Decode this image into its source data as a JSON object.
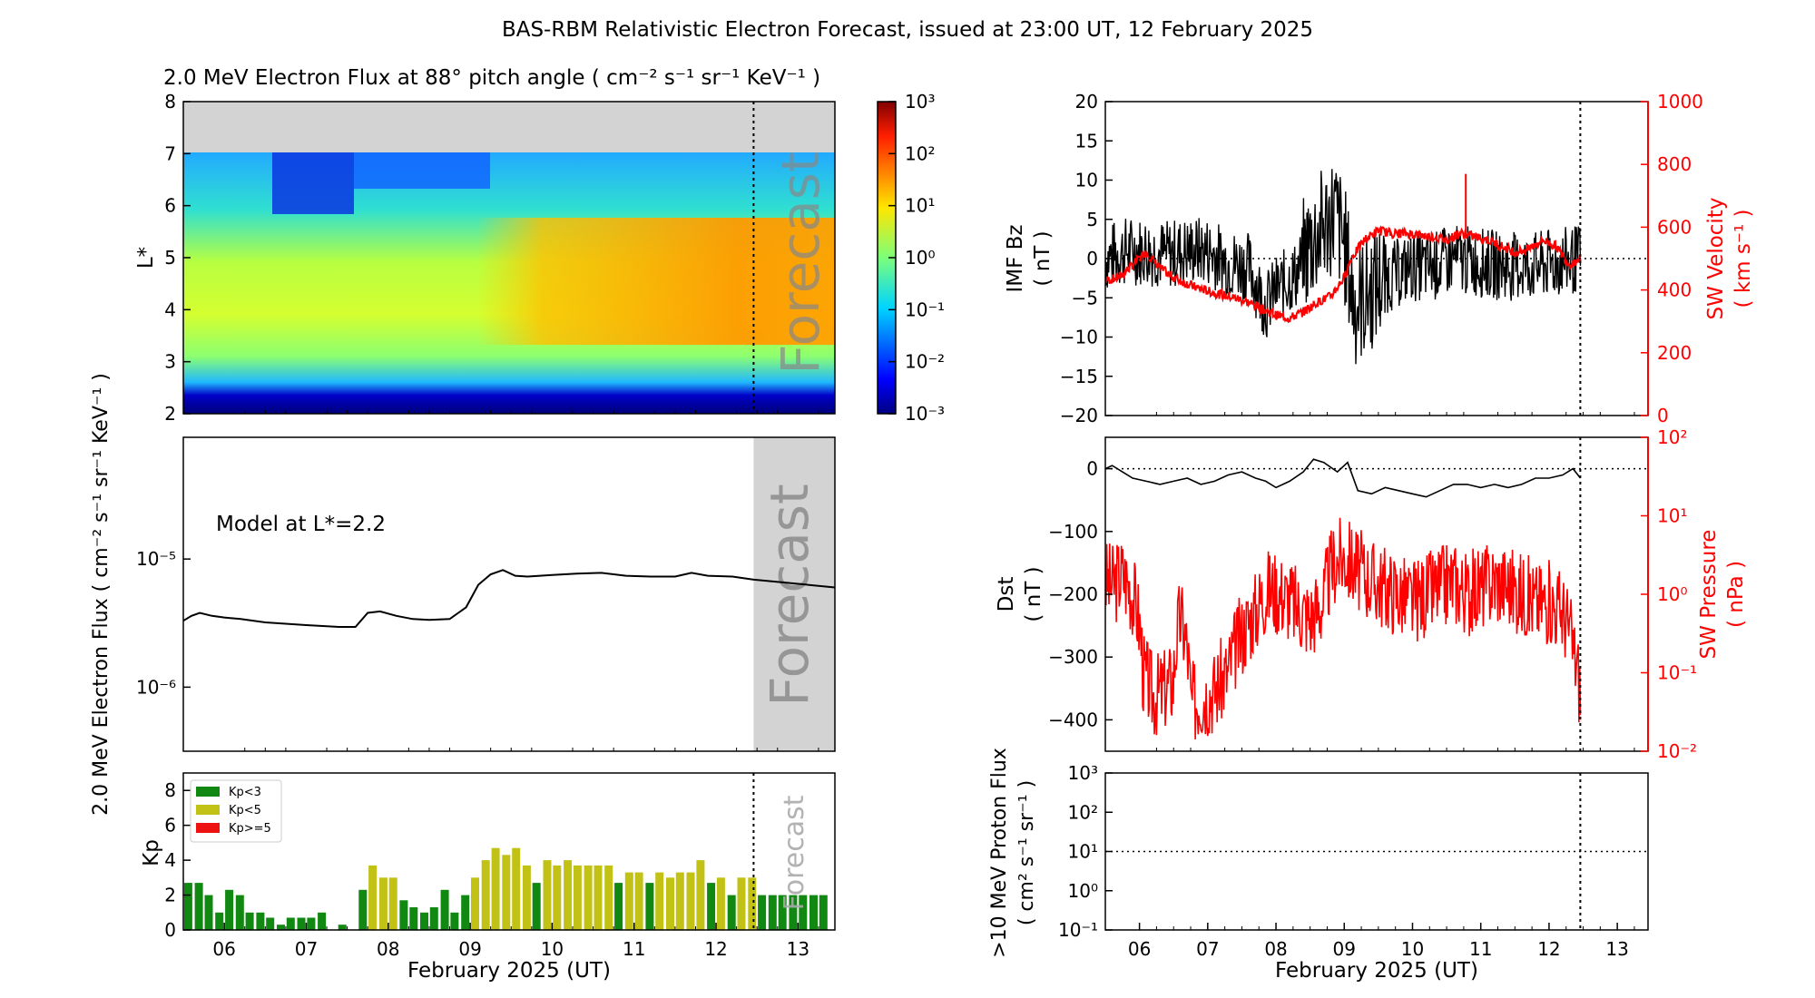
{
  "figure": {
    "title": "BAS-RBM Relativistic Electron Forecast, issued at 23:00 UT, 12 February 2025",
    "xlabel": "February 2025 (UT)",
    "day_ticks": [
      "06",
      "07",
      "08",
      "09",
      "10",
      "11",
      "12",
      "13"
    ],
    "forecast_label": "Forecast"
  },
  "chart_data": [
    {
      "id": "electron-flux-map",
      "type": "heatmap",
      "title": "2.0 MeV Electron Flux at 88° pitch angle ( cm⁻² s⁻¹ sr⁻¹ KeV⁻¹ )",
      "ylabel": "L*",
      "xlim": [
        5.5,
        13.45
      ],
      "ylim": [
        2,
        8
      ],
      "yticks": [
        "2",
        "3",
        "4",
        "5",
        "6",
        "7",
        "8"
      ],
      "colorbar_ticks": [
        "10⁻³",
        "10⁻²",
        "10⁻¹",
        "10⁰",
        "10¹",
        "10²",
        "10³"
      ],
      "colorbar_range_log10": [
        -3,
        3
      ],
      "no_data_region_L": [
        7,
        8
      ],
      "forecast_start": 12.458
    },
    {
      "id": "model-flux-line",
      "type": "line",
      "ylabel": "2.0 MeV Electron Flux ( cm⁻² s⁻¹ sr⁻¹ KeV⁻¹ )",
      "annotation": "Model at L*=2.2",
      "yscale": "log",
      "ylim_log10": [
        -6.5,
        -4.05
      ],
      "yticks": [
        "10⁻⁵",
        "10⁻⁶"
      ],
      "x": [
        5.5,
        5.6,
        5.7,
        5.85,
        6.0,
        6.2,
        6.5,
        7.0,
        7.4,
        7.6,
        7.75,
        7.9,
        8.1,
        8.3,
        8.5,
        8.75,
        8.95,
        9.1,
        9.25,
        9.4,
        9.55,
        9.7,
        10.0,
        10.3,
        10.6,
        10.9,
        11.2,
        11.5,
        11.7,
        11.9,
        12.2,
        12.46,
        12.9,
        13.45
      ],
      "y": [
        3.3e-06,
        3.6e-06,
        3.8e-06,
        3.6e-06,
        3.5e-06,
        3.4e-06,
        3.2e-06,
        3.05e-06,
        2.95e-06,
        2.95e-06,
        3.8e-06,
        3.9e-06,
        3.6e-06,
        3.4e-06,
        3.35e-06,
        3.4e-06,
        4.2e-06,
        6.3e-06,
        7.6e-06,
        8.2e-06,
        7.4e-06,
        7.3e-06,
        7.5e-06,
        7.7e-06,
        7.8e-06,
        7.4e-06,
        7.3e-06,
        7.3e-06,
        7.8e-06,
        7.4e-06,
        7.3e-06,
        6.9e-06,
        6.5e-06,
        6e-06
      ]
    },
    {
      "id": "kp-bars",
      "type": "bar",
      "ylabel": "Kp",
      "ylim": [
        0,
        9
      ],
      "yticks": [
        "0",
        "2",
        "4",
        "6",
        "8"
      ],
      "bar_width_days": 0.1,
      "thresholds": {
        "green_below": 3,
        "yellow_below": 5
      },
      "colors": {
        "low": "#118811",
        "mid": "#c2c216",
        "high": "#ee1111"
      },
      "legend": [
        "Kp<3",
        "Kp<5",
        "Kp>=5"
      ],
      "legend_position": "top-left",
      "x": [
        5.56,
        5.69,
        5.81,
        5.94,
        6.06,
        6.19,
        6.31,
        6.44,
        6.56,
        6.69,
        6.81,
        6.94,
        7.06,
        7.19,
        7.31,
        7.44,
        7.56,
        7.69,
        7.81,
        7.94,
        8.06,
        8.19,
        8.31,
        8.44,
        8.56,
        8.69,
        8.81,
        8.94,
        9.06,
        9.19,
        9.31,
        9.44,
        9.56,
        9.69,
        9.81,
        9.94,
        10.06,
        10.19,
        10.31,
        10.44,
        10.56,
        10.69,
        10.81,
        10.94,
        11.06,
        11.19,
        11.31,
        11.44,
        11.56,
        11.69,
        11.81,
        11.94,
        12.06,
        12.19,
        12.31,
        12.44,
        12.56,
        12.69,
        12.81,
        12.94,
        13.06,
        13.19,
        13.31
      ],
      "values": [
        2.7,
        2.7,
        2.0,
        1.0,
        2.3,
        2.0,
        1.0,
        1.0,
        0.7,
        0.3,
        0.7,
        0.7,
        0.7,
        1.0,
        0,
        0.3,
        0,
        2.3,
        3.7,
        3.0,
        3.0,
        1.7,
        1.3,
        1.0,
        1.3,
        2.3,
        1.0,
        2.0,
        3.0,
        4.0,
        4.7,
        4.3,
        4.7,
        3.7,
        2.7,
        4.0,
        3.7,
        4.0,
        3.7,
        3.7,
        3.7,
        3.7,
        2.7,
        3.3,
        3.3,
        2.7,
        3.3,
        3.0,
        3.3,
        3.3,
        4.0,
        2.7,
        3.0,
        2.0,
        3.0,
        3.0,
        2.0,
        2.0,
        2.0,
        2.0,
        2.0,
        2.0,
        2.0
      ]
    },
    {
      "id": "imf-sw-velocity",
      "type": "line",
      "ylabel_left": "IMF Bz ( nT )",
      "ylabel_right": "SW Velocity ( km s⁻¹ )",
      "ylim_left": [
        -20,
        20
      ],
      "ylim_right": [
        0,
        1000
      ],
      "yticks_left": [
        "20",
        "15",
        "10",
        "5",
        "0",
        "−5",
        "−10",
        "−15",
        "−20"
      ],
      "yticks_right": [
        "1000",
        "800",
        "600",
        "400",
        "200",
        "0"
      ],
      "series": [
        {
          "name": "IMF Bz",
          "color": "#000000",
          "axis": "left",
          "x": [
            5.5,
            5.8,
            6.1,
            6.4,
            6.7,
            7.0,
            7.3,
            7.6,
            7.75,
            7.85,
            8.0,
            8.3,
            8.5,
            8.7,
            8.85,
            9.0,
            9.15,
            9.3,
            9.5,
            9.75,
            10.0,
            10.3,
            10.6,
            11.0,
            11.4,
            11.8,
            12.2,
            12.46
          ],
          "y": [
            0,
            1,
            1,
            0.5,
            1,
            1,
            -0.5,
            -1,
            -4,
            -6,
            -4,
            -2,
            2,
            4,
            6,
            2,
            -6,
            -5,
            -3,
            -2,
            -1,
            -1,
            0,
            -0.5,
            -1,
            -1,
            -0.5,
            0
          ]
        },
        {
          "name": "SW Velocity",
          "color": "#ff0000",
          "axis": "right",
          "x": [
            5.5,
            5.7,
            5.9,
            6.1,
            6.3,
            6.5,
            6.8,
            7.1,
            7.4,
            7.6,
            7.8,
            8.0,
            8.2,
            8.4,
            8.6,
            8.8,
            9.0,
            9.1,
            9.3,
            9.5,
            9.7,
            9.9,
            10.1,
            10.3,
            10.5,
            10.7,
            10.9,
            11.1,
            11.3,
            11.5,
            11.7,
            11.9,
            12.1,
            12.3,
            12.46
          ],
          "y": [
            430,
            440,
            480,
            520,
            470,
            440,
            410,
            390,
            375,
            360,
            340,
            320,
            310,
            330,
            360,
            380,
            440,
            500,
            560,
            590,
            580,
            580,
            575,
            570,
            560,
            580,
            570,
            560,
            540,
            520,
            530,
            560,
            540,
            480,
            500
          ]
        }
      ],
      "spikes": {
        "x": [
          10.78
        ],
        "y": [
          770
        ]
      },
      "forecast_start": 12.458
    },
    {
      "id": "dst-sw-pressure",
      "type": "line",
      "ylabel_left": "Dst ( nT )",
      "ylabel_right": "SW Pressure ( nPa )",
      "ylim_left": [
        -450,
        50
      ],
      "yscale_right": "log",
      "ylim_right_log10": [
        -2,
        2
      ],
      "yticks_left": [
        "0",
        "−100",
        "−200",
        "−300",
        "−400"
      ],
      "yticks_right": [
        "10²",
        "10¹",
        "10⁰",
        "10⁻¹",
        "10⁻²"
      ],
      "series": [
        {
          "name": "Dst",
          "color": "#000000",
          "axis": "left",
          "x": [
            5.5,
            5.6,
            5.75,
            5.9,
            6.1,
            6.3,
            6.5,
            6.7,
            6.9,
            7.1,
            7.3,
            7.5,
            7.7,
            7.85,
            8.0,
            8.2,
            8.4,
            8.55,
            8.7,
            8.9,
            9.05,
            9.2,
            9.4,
            9.6,
            9.8,
            10.0,
            10.2,
            10.4,
            10.6,
            10.8,
            11.0,
            11.2,
            11.4,
            11.6,
            11.8,
            12.0,
            12.2,
            12.35,
            12.46
          ],
          "y": [
            0,
            5,
            -5,
            -15,
            -20,
            -25,
            -20,
            -15,
            -25,
            -20,
            -10,
            -5,
            -15,
            -20,
            -30,
            -20,
            -5,
            15,
            10,
            -5,
            10,
            -35,
            -40,
            -30,
            -35,
            -40,
            -45,
            -35,
            -25,
            -25,
            -30,
            -25,
            -30,
            -25,
            -15,
            -15,
            -10,
            0,
            -15
          ]
        },
        {
          "name": "SW Pressure",
          "color": "#ff0000",
          "axis": "right",
          "x": [
            5.5,
            5.6,
            5.75,
            5.9,
            6.05,
            6.2,
            6.35,
            6.5,
            6.6,
            6.75,
            6.9,
            7.1,
            7.3,
            7.5,
            7.7,
            7.9,
            8.1,
            8.3,
            8.5,
            8.7,
            8.85,
            9.0,
            9.2,
            9.4,
            9.6,
            9.8,
            10.0,
            10.2,
            10.4,
            10.6,
            10.8,
            11.0,
            11.2,
            11.4,
            11.6,
            11.8,
            12.0,
            12.2,
            12.35,
            12.46
          ],
          "y": [
            1.5,
            1.3,
            1.8,
            1.0,
            0.1,
            0.05,
            0.06,
            0.08,
            0.5,
            0.04,
            0.05,
            0.06,
            0.1,
            0.3,
            0.6,
            1.2,
            1.0,
            0.7,
            0.5,
            0.8,
            2.5,
            3.0,
            2.0,
            1.5,
            1.2,
            1.0,
            0.8,
            1.0,
            1.2,
            1.5,
            1.0,
            1.2,
            1.5,
            1.3,
            1.0,
            0.8,
            0.8,
            0.6,
            0.2,
            0.05
          ]
        }
      ],
      "forecast_start": 12.458
    },
    {
      "id": "proton-flux",
      "type": "line",
      "ylabel": ">10 MeV Proton Flux ( cm² s⁻¹ sr⁻¹ )",
      "yscale": "log",
      "ylim_log10": [
        -1,
        3
      ],
      "yticks": [
        "10³",
        "10²",
        "10¹",
        "10⁰",
        "10⁻¹"
      ],
      "threshold_line": 10,
      "forecast_start": 12.458
    }
  ]
}
